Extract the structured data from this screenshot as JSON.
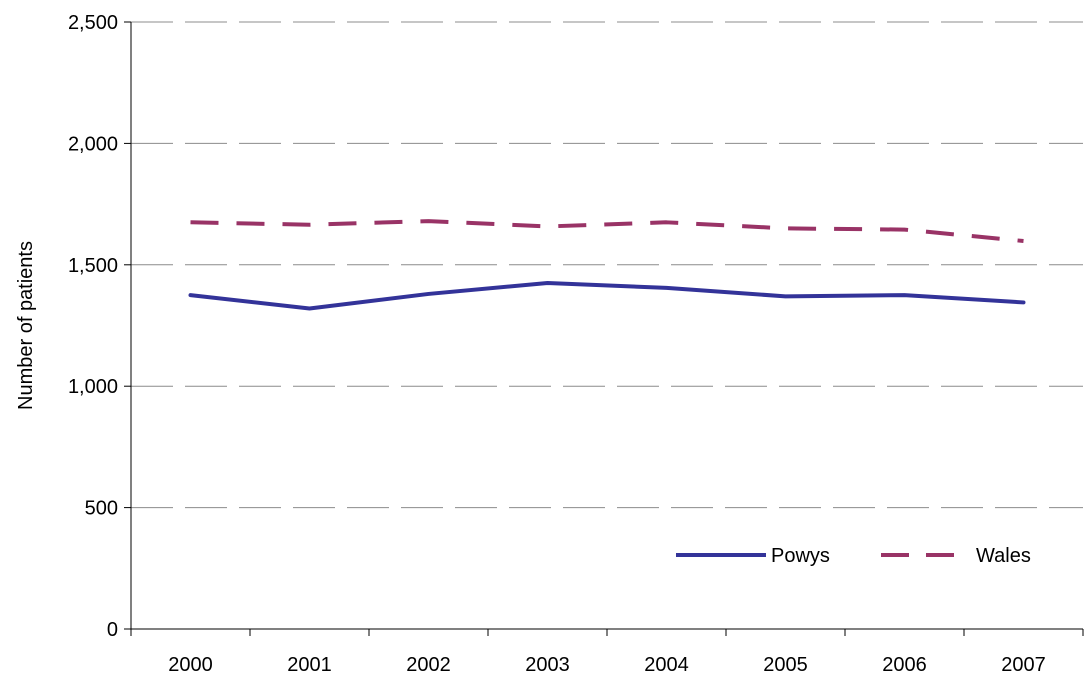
{
  "chart_data": {
    "type": "line",
    "title": "",
    "xlabel": "",
    "ylabel": "Number of patients",
    "categories": [
      "2000",
      "2001",
      "2002",
      "2003",
      "2004",
      "2005",
      "2006",
      "2007"
    ],
    "ylim": [
      0,
      2500
    ],
    "yticks": [
      0,
      500,
      1000,
      1500,
      2000,
      2500
    ],
    "ytick_labels": [
      "0",
      "500",
      "1,000",
      "1,500",
      "2,000",
      "2,500"
    ],
    "grid": "horizontal-dashed",
    "legend_position": "bottom-right",
    "series": [
      {
        "name": "Powys",
        "values": [
          1375,
          1320,
          1380,
          1425,
          1405,
          1370,
          1375,
          1345
        ],
        "color": "#333399",
        "style": "solid"
      },
      {
        "name": "Wales",
        "values": [
          1675,
          1665,
          1680,
          1658,
          1675,
          1650,
          1645,
          1598
        ],
        "color": "#993366",
        "style": "dashed"
      }
    ]
  }
}
